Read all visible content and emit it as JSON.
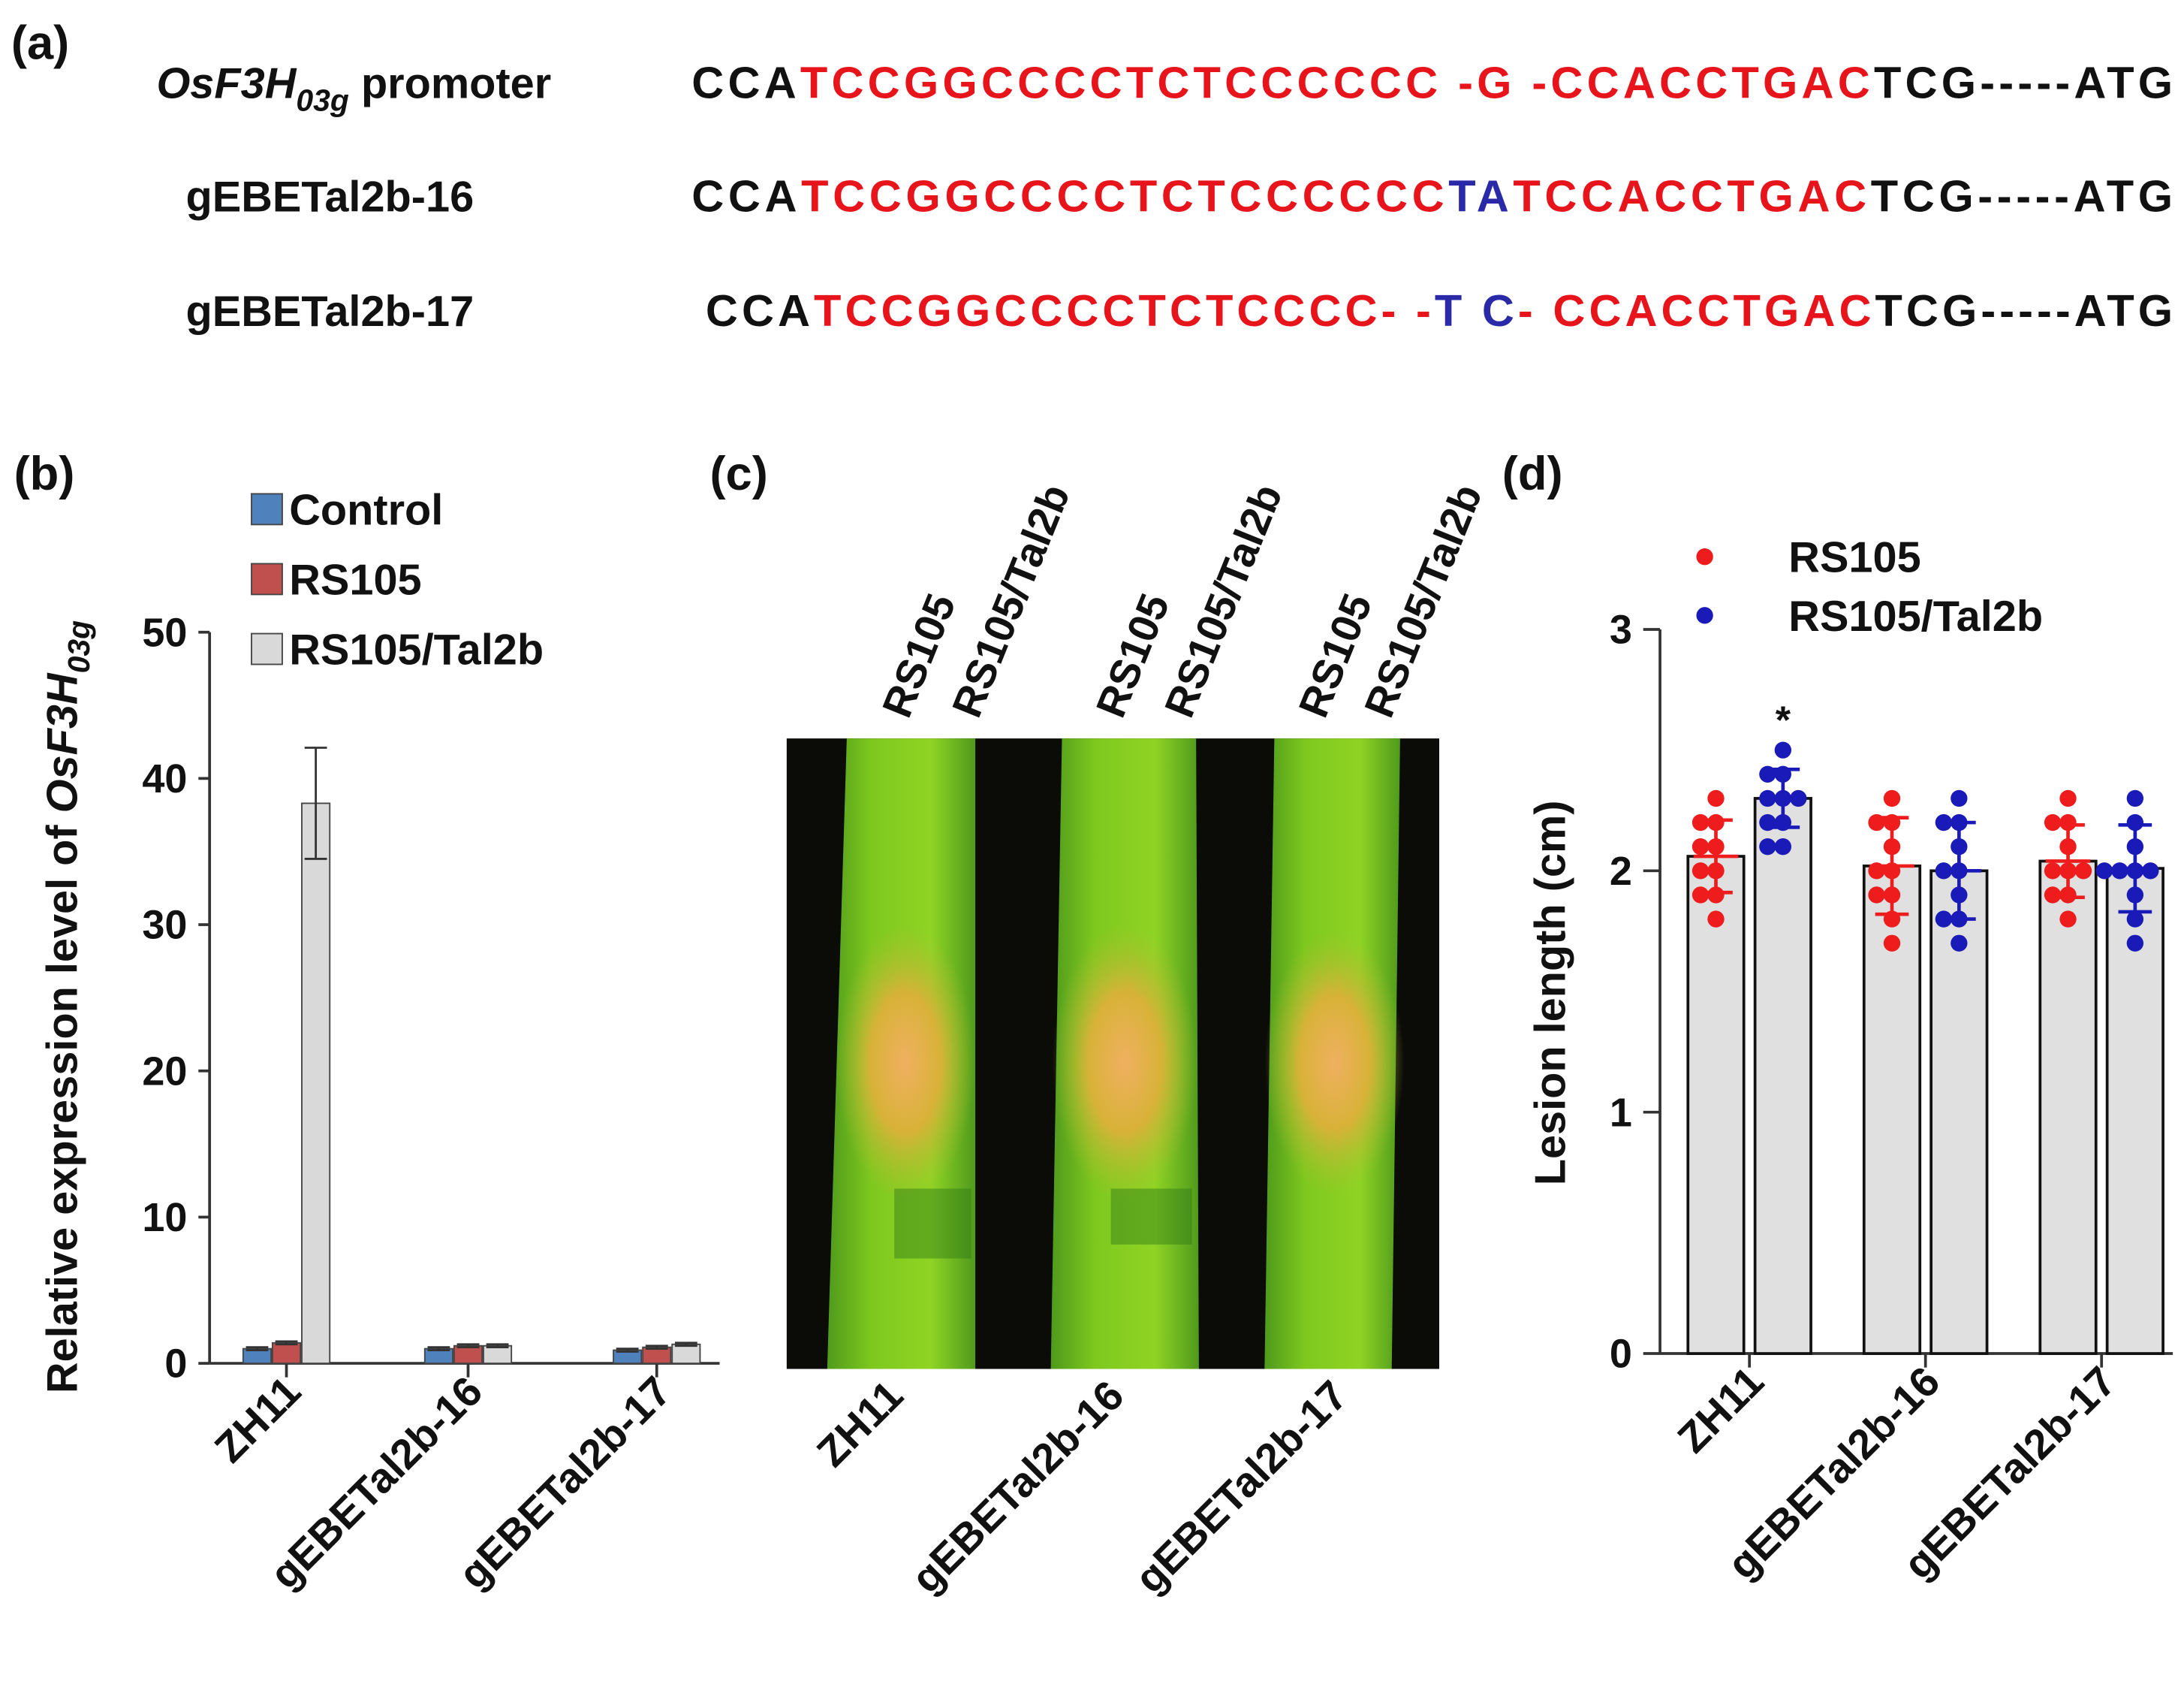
{
  "panel_a": {
    "label": "(a)",
    "rows": [
      {
        "name": [
          "OsF3H",
          "03g",
          " promoter"
        ],
        "seq": [
          {
            "text": "CCA",
            "color": "#111111"
          },
          {
            "text": "TCCGGCCCCTCTCCCCCC -G -CCACCTGAC",
            "color": "#e8141b"
          },
          {
            "text": "TCG-----ATG",
            "color": "#111111"
          }
        ]
      },
      {
        "name": [
          "gEBETal2b-16"
        ],
        "seq": [
          {
            "text": "CCA",
            "color": "#111111"
          },
          {
            "text": "TCCGGCCCCTCTCCCCCC",
            "color": "#e8141b"
          },
          {
            "text": "TA",
            "color": "#2a2aa8"
          },
          {
            "text": "TCCACCTGAC",
            "color": "#e8141b"
          },
          {
            "text": "TCG-----ATG",
            "color": "#111111"
          }
        ]
      },
      {
        "name": [
          "gEBETal2b-17"
        ],
        "seq": [
          {
            "text": "CCA",
            "color": "#111111"
          },
          {
            "text": "TCCGGCCCCTCTCCCC- -",
            "color": "#e8141b"
          },
          {
            "text": "T C",
            "color": "#2a2aa8"
          },
          {
            "text": "- CCACCTGAC",
            "color": "#e8141b"
          },
          {
            "text": "TCG-----ATG",
            "color": "#111111"
          }
        ]
      }
    ]
  },
  "panel_c": {
    "label": "(c)",
    "column_labels": [
      "RS105",
      "RS105/Tal2b",
      "RS105",
      "RS105/Tal2b",
      "RS105",
      "RS105/Tal2b"
    ],
    "lines": [
      "ZH11",
      "gEBETal2b-16",
      "gEBETal2b-17"
    ]
  },
  "chart_data": [
    {
      "type": "bar",
      "panel_label": "(b)",
      "ylabel": [
        "Relative expression level of ",
        "OsF3H",
        "03g"
      ],
      "categories": [
        "ZH11",
        "gEBETal2b-16",
        "gEBETal2b-17"
      ],
      "series": [
        {
          "name": "Control",
          "color": "#4f81bd",
          "values": [
            1.0,
            1.0,
            0.9
          ],
          "errors": [
            0.1,
            0.1,
            0.1
          ]
        },
        {
          "name": "RS105",
          "color": "#c0504d",
          "values": [
            1.4,
            1.2,
            1.1
          ],
          "errors": [
            0.1,
            0.1,
            0.1
          ]
        },
        {
          "name": "RS105/Tal2b",
          "color": "#d9d9d9",
          "values": [
            38.3,
            1.2,
            1.3
          ],
          "errors": [
            3.8,
            0.1,
            0.1
          ]
        }
      ],
      "ylim": [
        0,
        50
      ],
      "yticks": [
        0,
        10,
        20,
        30,
        40,
        50
      ],
      "legend": "upper left"
    },
    {
      "type": "bar_points",
      "panel_label": "(d)",
      "ylabel": "Lesion length (cm)",
      "categories": [
        "ZH11",
        "gEBETal2b-16",
        "gEBETal2b-17"
      ],
      "bar_color": "#e0e0e0",
      "series": [
        {
          "name": "RS105",
          "color": "#ee1c1c",
          "values": [
            2.06,
            2.02,
            2.04
          ],
          "errors": [
            0.15,
            0.2,
            0.15
          ],
          "points": [
            [
              2.3,
              2.2,
              2.2,
              2.1,
              2.1,
              2.0,
              2.0,
              1.9,
              1.9,
              1.8
            ],
            [
              2.3,
              2.2,
              2.2,
              2.1,
              2.0,
              2.0,
              1.9,
              1.9,
              1.8,
              1.7
            ],
            [
              2.3,
              2.2,
              2.2,
              2.1,
              2.0,
              2.0,
              2.0,
              1.9,
              1.9,
              1.8
            ]
          ]
        },
        {
          "name": "RS105/Tal2b",
          "color": "#1a1ab8",
          "values": [
            2.3,
            2.0,
            2.01
          ],
          "errors": [
            0.12,
            0.2,
            0.18
          ],
          "points": [
            [
              2.5,
              2.4,
              2.4,
              2.3,
              2.3,
              2.3,
              2.2,
              2.2,
              2.1,
              2.1
            ],
            [
              2.3,
              2.2,
              2.2,
              2.1,
              2.0,
              2.0,
              1.9,
              1.8,
              1.8,
              1.7
            ],
            [
              2.3,
              2.2,
              2.1,
              2.0,
              2.0,
              2.0,
              2.0,
              1.9,
              1.8,
              1.7
            ]
          ]
        }
      ],
      "annotation": "*",
      "ylim": [
        0,
        3
      ],
      "yticks": [
        0,
        1,
        2,
        3
      ],
      "legend": "upper left"
    }
  ]
}
